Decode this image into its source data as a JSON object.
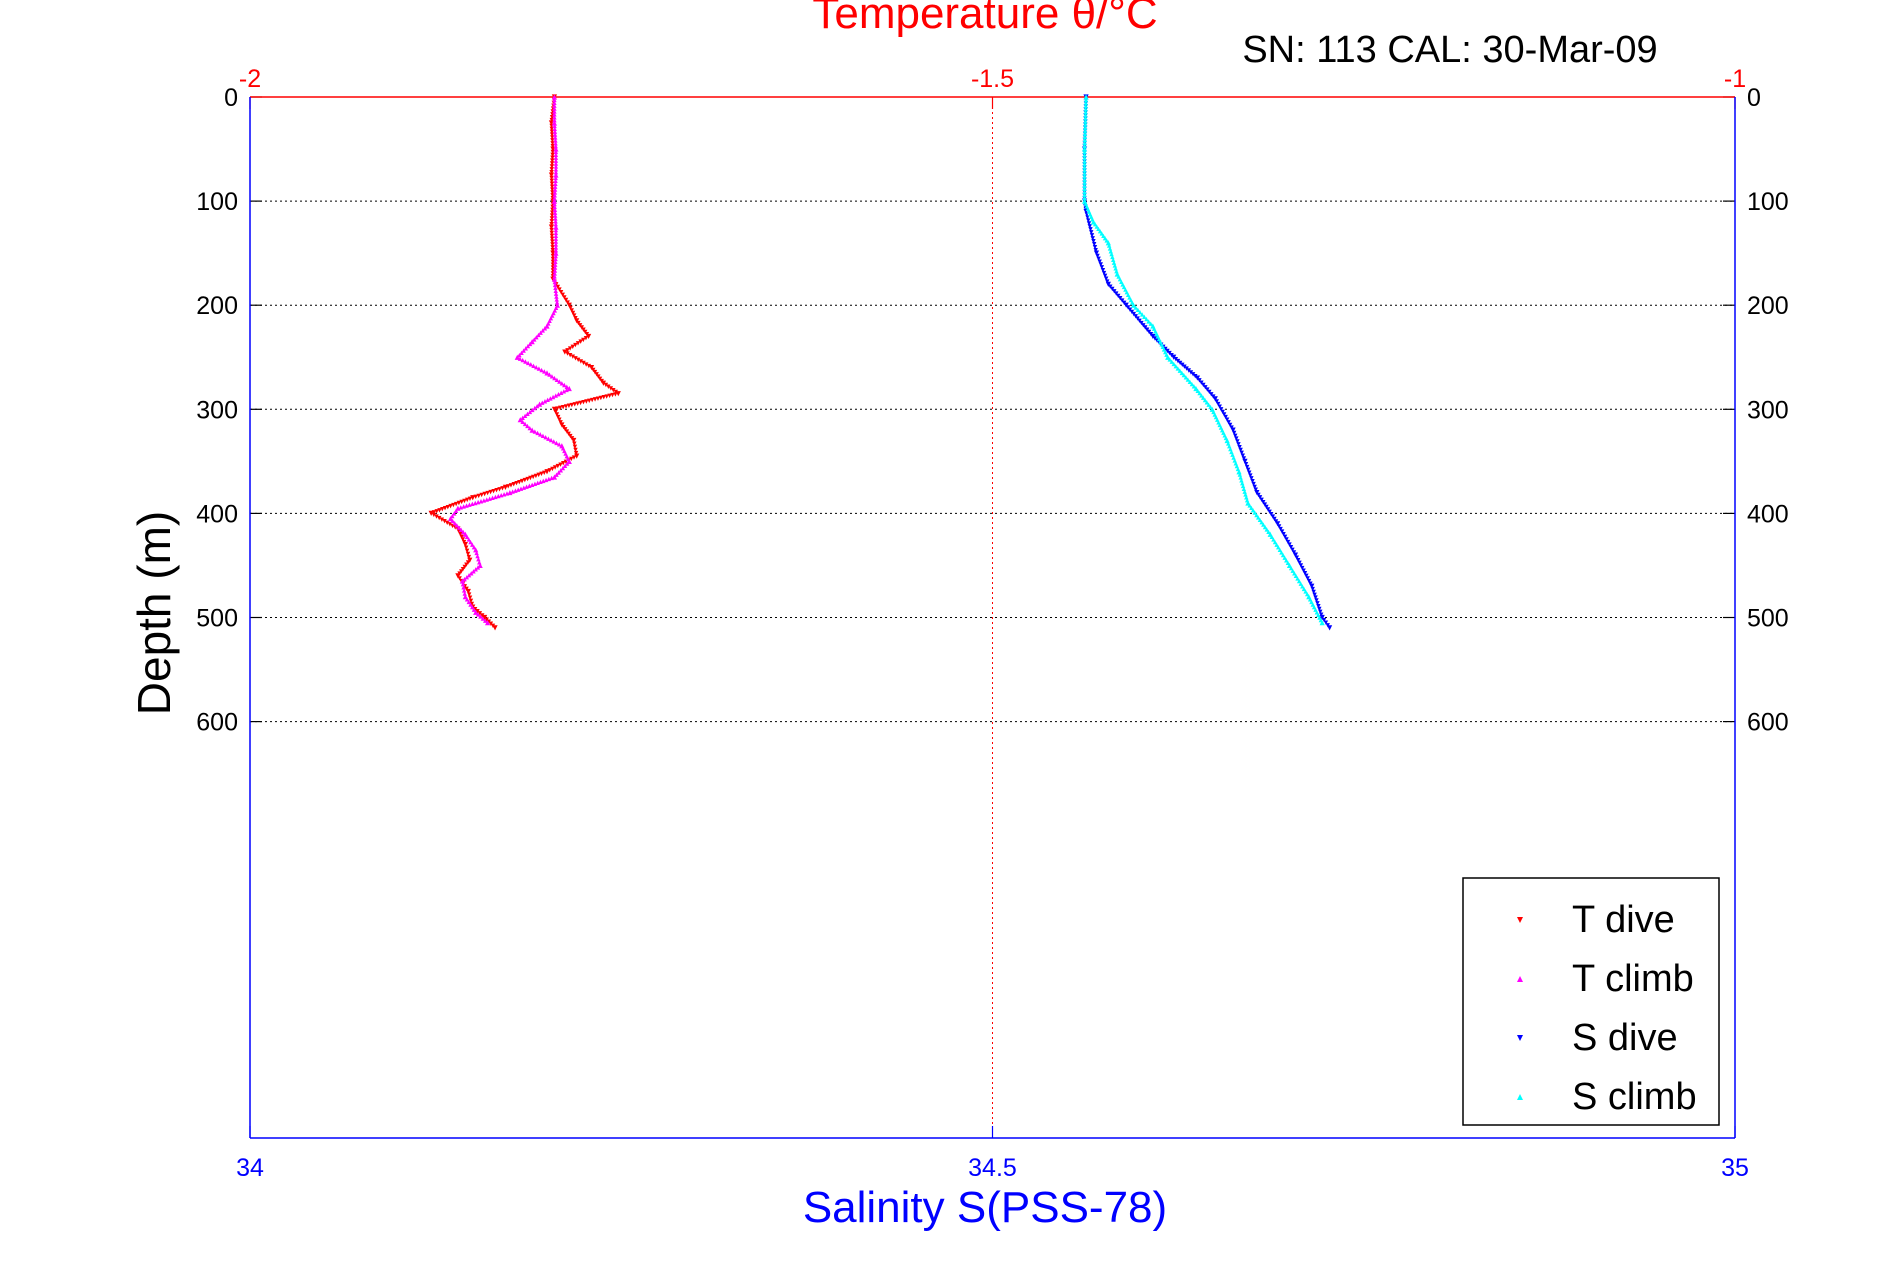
{
  "header": {
    "top_title": "Temperature θ/°C",
    "sn_cal": "SN: 113  CAL: 30-Mar-09"
  },
  "axes": {
    "ylabel": "Depth (m)",
    "xlabel_bottom": "Salinity S(PSS-78)"
  },
  "colors": {
    "temperature_axis": "#ff0000",
    "salinity_axis": "#0000ff",
    "t_dive": "#ff0000",
    "t_climb": "#ff00ff",
    "s_dive": "#0000ff",
    "s_climb": "#00ffff",
    "grid": "#000000"
  },
  "chart_data": {
    "type": "scatter",
    "title": "Temperature θ/°C",
    "subtitle": "SN: 113  CAL: 30-Mar-09",
    "xlabel": "Salinity S(PSS-78)",
    "ylabel": "Depth (m)",
    "x_top": {
      "label": "Temperature θ/°C",
      "lim": [
        -2,
        -1
      ],
      "ticks": [
        -2,
        -1.5,
        -1
      ],
      "tick_labels": [
        "-2",
        "-1.5",
        "-1"
      ]
    },
    "x_bottom": {
      "label": "Salinity S(PSS-78)",
      "lim": [
        34,
        35
      ],
      "ticks": [
        34,
        34.5,
        35
      ],
      "tick_labels": [
        "34",
        "34.5",
        "35"
      ]
    },
    "y": {
      "lim": [
        0,
        1000
      ],
      "reversed": true,
      "ticks": [
        0,
        100,
        200,
        300,
        400,
        500,
        600
      ],
      "tick_labels": [
        "0",
        "100",
        "200",
        "300",
        "400",
        "500",
        "600"
      ]
    },
    "grid": true,
    "legend": {
      "placement": "bottom-right",
      "entries": [
        "T dive",
        "T climb",
        "S dive",
        "S climb"
      ]
    },
    "series": [
      {
        "name": "T dive",
        "axis": "temperature",
        "color": "#ff0000",
        "marker": "triangle-down",
        "depth": [
          0,
          25,
          50,
          75,
          100,
          125,
          150,
          175,
          200,
          215,
          230,
          245,
          260,
          275,
          285,
          300,
          315,
          330,
          345,
          360,
          375,
          385,
          400,
          415,
          430,
          445,
          460,
          475,
          490,
          500,
          510
        ],
        "values": [
          -1.795,
          -1.797,
          -1.796,
          -1.797,
          -1.796,
          -1.797,
          -1.796,
          -1.796,
          -1.785,
          -1.78,
          -1.772,
          -1.788,
          -1.77,
          -1.762,
          -1.752,
          -1.795,
          -1.79,
          -1.782,
          -1.78,
          -1.8,
          -1.828,
          -1.85,
          -1.878,
          -1.86,
          -1.855,
          -1.852,
          -1.86,
          -1.853,
          -1.85,
          -1.842,
          -1.835
        ]
      },
      {
        "name": "T climb",
        "axis": "temperature",
        "color": "#ff00ff",
        "marker": "triangle-up",
        "depth": [
          0,
          25,
          50,
          75,
          100,
          125,
          150,
          175,
          200,
          220,
          235,
          250,
          265,
          280,
          295,
          310,
          320,
          335,
          350,
          365,
          380,
          395,
          405,
          420,
          435,
          450,
          465,
          480,
          495,
          505
        ],
        "values": [
          -1.795,
          -1.795,
          -1.794,
          -1.794,
          -1.795,
          -1.794,
          -1.794,
          -1.795,
          -1.793,
          -1.8,
          -1.81,
          -1.82,
          -1.8,
          -1.785,
          -1.805,
          -1.818,
          -1.81,
          -1.79,
          -1.785,
          -1.795,
          -1.825,
          -1.86,
          -1.865,
          -1.855,
          -1.848,
          -1.845,
          -1.857,
          -1.855,
          -1.848,
          -1.84
        ]
      },
      {
        "name": "S dive",
        "axis": "salinity",
        "color": "#0000ff",
        "marker": "triangle-down",
        "depth": [
          0,
          50,
          100,
          110,
          150,
          180,
          200,
          230,
          250,
          270,
          290,
          320,
          350,
          380,
          410,
          440,
          470,
          500,
          510
        ],
        "values": [
          34.563,
          34.562,
          34.562,
          34.563,
          34.57,
          34.578,
          34.59,
          34.608,
          34.622,
          34.638,
          34.65,
          34.662,
          34.67,
          34.678,
          34.692,
          34.704,
          34.715,
          34.722,
          34.727
        ]
      },
      {
        "name": "S climb",
        "axis": "salinity",
        "color": "#00ffff",
        "marker": "triangle-up",
        "depth": [
          0,
          50,
          100,
          120,
          140,
          170,
          200,
          220,
          250,
          280,
          300,
          330,
          360,
          390,
          420,
          450,
          480,
          505
        ],
        "values": [
          34.563,
          34.562,
          34.562,
          34.568,
          34.578,
          34.584,
          34.595,
          34.608,
          34.618,
          34.637,
          34.648,
          34.658,
          34.666,
          34.672,
          34.687,
          34.7,
          34.713,
          34.722
        ]
      }
    ]
  }
}
